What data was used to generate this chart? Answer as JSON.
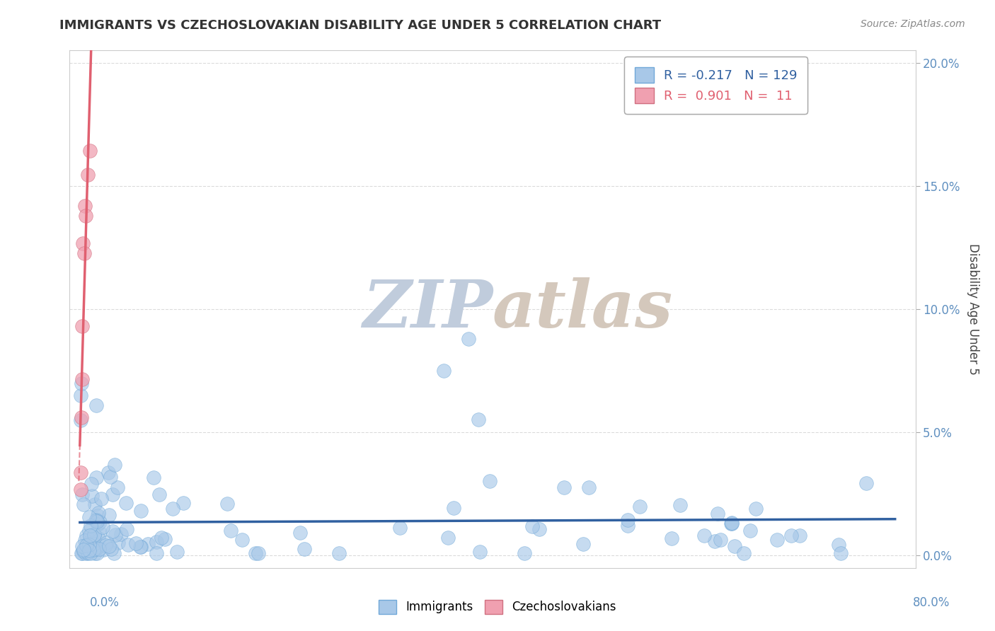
{
  "title": "IMMIGRANTS VS CZECHOSLOVAKIAN DISABILITY AGE UNDER 5 CORRELATION CHART",
  "source_text": "Source: ZipAtlas.com",
  "ylabel": "Disability Age Under 5",
  "xlim": [
    -0.01,
    0.82
  ],
  "ylim": [
    -0.005,
    0.205
  ],
  "yticks": [
    0.0,
    0.05,
    0.1,
    0.15,
    0.2
  ],
  "yticklabels_right": [
    "0.0%",
    "5.0%",
    "10.0%",
    "15.0%",
    "20.0%"
  ],
  "immigrants_color": "#a8c8e8",
  "czechs_color": "#f0a0b0",
  "trendline_immigrants_color": "#3060a0",
  "trendline_czechs_color": "#e06070",
  "watermark_zip_color": "#c8d4e8",
  "watermark_atlas_color": "#d0c8c0",
  "legend_R1": "-0.217",
  "legend_N1": "129",
  "legend_R2": "0.901",
  "legend_N2": "11",
  "background_color": "#ffffff",
  "grid_color": "#d8d8d8",
  "axis_color": "#aaaaaa",
  "tick_label_color": "#6090c0",
  "title_color": "#333333"
}
